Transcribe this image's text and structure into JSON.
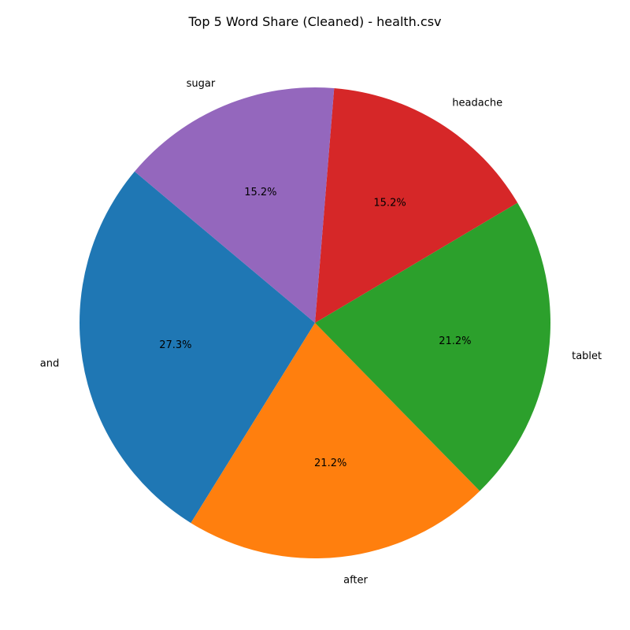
{
  "chart_data": {
    "type": "pie",
    "title": "Top 5 Word Share (Cleaned) - health.csv",
    "start_angle_deg": 140,
    "direction": "counterclockwise",
    "slices": [
      {
        "label": "and",
        "value": 27.3,
        "pct_label": "27.3%",
        "color": "#1f77b4"
      },
      {
        "label": "after",
        "value": 21.2,
        "pct_label": "21.2%",
        "color": "#ff7f0e"
      },
      {
        "label": "tablet",
        "value": 21.2,
        "pct_label": "21.2%",
        "color": "#2ca02c"
      },
      {
        "label": "headache",
        "value": 15.2,
        "pct_label": "15.2%",
        "color": "#d62728"
      },
      {
        "label": "sugar",
        "value": 15.2,
        "pct_label": "15.2%",
        "color": "#9467bd"
      }
    ]
  }
}
